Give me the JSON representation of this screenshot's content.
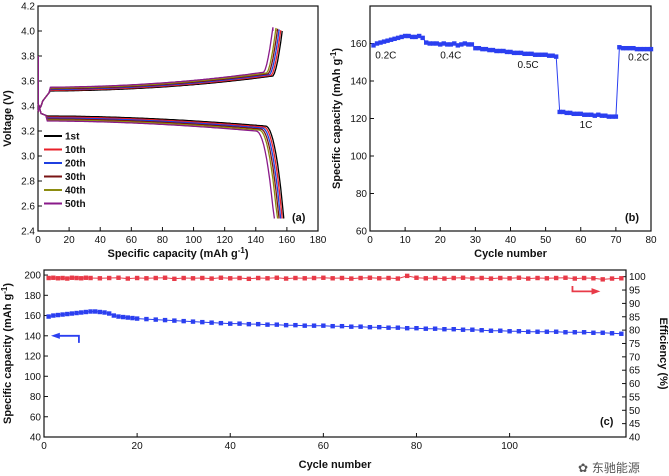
{
  "chart_data": [
    {
      "panel_label": "(a)",
      "type": "line",
      "xlabel_main": "Specific capacity (mAh g",
      "xlabel_sup": "-1",
      "xlabel_end": ")",
      "ylabel": "Voltage (V)",
      "xlim": [
        0,
        180
      ],
      "ylim": [
        2.4,
        4.2
      ],
      "xticks": [
        0,
        20,
        40,
        60,
        80,
        100,
        120,
        140,
        160,
        180
      ],
      "yticks": [
        2.4,
        2.6,
        2.8,
        3.0,
        3.2,
        3.4,
        3.6,
        3.8,
        4.0,
        4.2
      ],
      "legend_position": "lower-left",
      "series": [
        {
          "name": "1st",
          "color": "#000000",
          "charge_end": 157,
          "discharge_end": 158,
          "shift": 0.0
        },
        {
          "name": "10th",
          "color": "#e8202a",
          "charge_end": 156,
          "discharge_end": 157,
          "shift": 0.01
        },
        {
          "name": "20th",
          "color": "#1f3fe0",
          "charge_end": 155,
          "discharge_end": 156,
          "shift": 0.02
        },
        {
          "name": "30th",
          "color": "#7a1414",
          "charge_end": 154,
          "discharge_end": 155,
          "shift": 0.03
        },
        {
          "name": "40th",
          "color": "#8c8c10",
          "charge_end": 153,
          "discharge_end": 154,
          "shift": 0.04
        },
        {
          "name": "50th",
          "color": "#8a1a8a",
          "charge_end": 151,
          "discharge_end": 152,
          "shift": 0.05
        }
      ]
    },
    {
      "panel_label": "(b)",
      "type": "scatter",
      "xlabel": "Cycle number",
      "ylabel_main": "Specific capacity (mAh g",
      "ylabel_sup": "-1",
      "ylabel_end": ")",
      "xlim": [
        0,
        80
      ],
      "ylim": [
        60,
        180
      ],
      "xticks": [
        0,
        10,
        20,
        30,
        40,
        50,
        60,
        70,
        80
      ],
      "yticks": [
        60,
        80,
        100,
        120,
        140,
        160
      ],
      "color": "#2b3ff0",
      "x": [
        1,
        2,
        3,
        4,
        5,
        6,
        7,
        8,
        9,
        10,
        11,
        12,
        13,
        14,
        15,
        16,
        17,
        18,
        19,
        20,
        21,
        22,
        23,
        24,
        25,
        26,
        27,
        28,
        29,
        30,
        31,
        32,
        33,
        34,
        35,
        36,
        37,
        38,
        39,
        40,
        41,
        42,
        43,
        44,
        45,
        46,
        47,
        48,
        49,
        50,
        51,
        52,
        53,
        54,
        55,
        56,
        57,
        58,
        59,
        60,
        61,
        62,
        63,
        64,
        65,
        66,
        67,
        68,
        69,
        70,
        71,
        72,
        73,
        74,
        75,
        76,
        77,
        78,
        79,
        80
      ],
      "y": [
        159,
        160,
        160.5,
        161,
        161.5,
        162,
        162.5,
        163,
        163.5,
        164,
        164,
        163.5,
        163.5,
        164,
        163,
        160.5,
        160,
        160,
        160,
        159.5,
        160,
        159.5,
        159.5,
        160,
        159,
        159.5,
        160,
        159.5,
        159.5,
        157.5,
        157.5,
        157,
        157,
        156.5,
        156.5,
        156,
        156,
        156,
        155.5,
        155.5,
        155,
        155,
        155,
        154.5,
        154.5,
        154.5,
        154,
        154,
        154,
        154,
        153.5,
        153.5,
        153,
        123.5,
        123.5,
        123,
        123,
        122.5,
        122.5,
        122.5,
        122,
        122,
        122,
        121.5,
        122,
        121.5,
        121.5,
        121,
        121,
        121,
        158,
        157.5,
        157.5,
        157.5,
        157.5,
        157,
        157,
        157,
        157,
        157
      ],
      "annotations": [
        {
          "text": "0.2C",
          "x": 4.5,
          "y": 152
        },
        {
          "text": "0.4C",
          "x": 23,
          "y": 152
        },
        {
          "text": "0.5C",
          "x": 45,
          "y": 147
        },
        {
          "text": "1C",
          "x": 61.5,
          "y": 115
        },
        {
          "text": "0.2C",
          "x": 76.5,
          "y": 151
        }
      ]
    },
    {
      "panel_label": "(c)",
      "type": "scatter",
      "xlabel": "Cycle number",
      "ylabel_left_main": "Specific capacity (mAh g",
      "ylabel_left_sup": "-1",
      "ylabel_left_end": ")",
      "ylabel_right": "Efficiency (%)",
      "xlim": [
        0,
        125
      ],
      "ylim_left": [
        40,
        205
      ],
      "ylim_right": [
        40,
        102.5
      ],
      "xticks": [
        0,
        20,
        40,
        60,
        80,
        100
      ],
      "yticks_left": [
        40,
        60,
        80,
        100,
        120,
        140,
        160,
        180,
        200
      ],
      "yticks_right": [
        40,
        45,
        50,
        55,
        60,
        65,
        70,
        75,
        80,
        85,
        90,
        95,
        100
      ],
      "series": [
        {
          "name": "Specific capacity",
          "axis": "left",
          "color": "#2b3ff0",
          "x": [
            1,
            2,
            3,
            4,
            5,
            6,
            7,
            8,
            9,
            10,
            11,
            12,
            13,
            14,
            15,
            16,
            17,
            18,
            19,
            20,
            22,
            24,
            26,
            28,
            30,
            32,
            34,
            36,
            38,
            40,
            42,
            44,
            46,
            48,
            50,
            52,
            54,
            56,
            58,
            60,
            62,
            64,
            66,
            68,
            70,
            72,
            74,
            76,
            78,
            80,
            82,
            84,
            86,
            88,
            90,
            92,
            94,
            96,
            98,
            100,
            102,
            104,
            106,
            108,
            110,
            112,
            114,
            116,
            118,
            120,
            122,
            124
          ],
          "y": [
            159,
            160,
            160.5,
            161,
            161.5,
            162,
            162.5,
            163,
            163.5,
            164,
            164,
            163.5,
            163,
            162,
            160,
            159,
            158.5,
            158,
            157.5,
            157,
            156.5,
            156,
            155.5,
            155,
            154.5,
            154,
            153.5,
            153,
            152.5,
            152,
            152,
            151.5,
            151.5,
            151,
            151,
            150.5,
            150.5,
            150,
            150,
            150,
            149.5,
            149.5,
            149,
            149,
            148.5,
            148.5,
            148,
            148,
            147.5,
            147.5,
            147,
            147,
            146.5,
            146.5,
            146,
            146,
            145.5,
            145,
            145,
            144.5,
            144.5,
            144,
            144,
            144,
            144,
            143.5,
            143.5,
            143.5,
            143,
            143,
            142.5,
            142
          ]
        },
        {
          "name": "Efficiency",
          "axis": "right",
          "color": "#e83a48",
          "x": [
            1,
            2,
            3,
            4,
            5,
            6,
            7,
            8,
            9,
            10,
            12,
            14,
            16,
            18,
            20,
            22,
            24,
            26,
            28,
            30,
            32,
            34,
            36,
            38,
            40,
            42,
            44,
            46,
            48,
            50,
            52,
            54,
            56,
            58,
            60,
            62,
            64,
            66,
            68,
            70,
            72,
            74,
            76,
            78,
            80,
            82,
            84,
            86,
            88,
            90,
            92,
            94,
            96,
            98,
            100,
            102,
            104,
            106,
            108,
            110,
            112,
            114,
            116,
            118,
            120,
            122,
            124
          ],
          "y": [
            99.5,
            99.6,
            99.4,
            99.5,
            99.3,
            99.6,
            99.5,
            99.4,
            99.6,
            99.5,
            99.4,
            99.5,
            99.6,
            99.3,
            99.5,
            99.4,
            99.5,
            99.6,
            99.2,
            99.5,
            99.4,
            99.5,
            99.3,
            99.6,
            99.4,
            99.5,
            99.2,
            99.5,
            99.4,
            99.6,
            99.3,
            99.5,
            99.4,
            99.5,
            99.6,
            99.4,
            99.5,
            99.3,
            99.5,
            99.6,
            99.4,
            99.5,
            99.3,
            100.3,
            99.6,
            99.4,
            99.5,
            99.3,
            99.5,
            99.6,
            99.4,
            99.5,
            99.3,
            99.5,
            99.4,
            99.6,
            99.3,
            99.5,
            99.4,
            99.5,
            99.6,
            99.3,
            99.5,
            99.4,
            99.0,
            99.3,
            99.4
          ]
        }
      ]
    }
  ],
  "watermark": "东驰能源",
  "colors": {
    "capacity_blue": "#2b3ff0",
    "efficiency_red": "#e83a48"
  }
}
